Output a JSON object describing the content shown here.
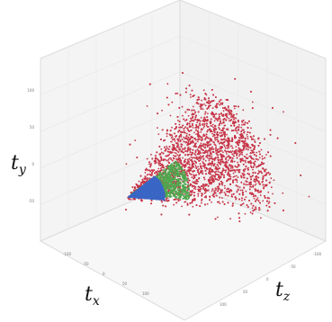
{
  "chart_data": {
    "type": "scatter",
    "title": "",
    "axes": {
      "x": {
        "label": "t",
        "subscript": "x"
      },
      "y": {
        "label": "t",
        "subscript": "y"
      },
      "z": {
        "label": "t",
        "subscript": "z"
      }
    },
    "y_ticks": [
      "100",
      "50",
      "0",
      "-50"
    ],
    "x_ticks": [
      "-100",
      "-50",
      "0",
      "50",
      "100"
    ],
    "z_ticks": [
      "-100",
      "-50",
      "0",
      "50",
      "100"
    ],
    "grid": true,
    "series": [
      {
        "color": "#c8374a",
        "approx_points": 9000
      },
      {
        "color": "#4ea84e",
        "approx_points": 1500
      },
      {
        "color": "#3a66c4",
        "approx_points": 1800
      }
    ]
  }
}
